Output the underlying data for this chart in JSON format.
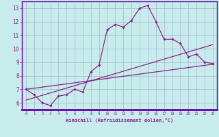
{
  "xlabel": "Windchill (Refroidissement éolien,°C)",
  "bg_color": "#c8ecec",
  "grid_color": "#a0b8cc",
  "line_color": "#882288",
  "axis_bar_color": "#6600aa",
  "xlim": [
    -0.5,
    23.5
  ],
  "ylim": [
    5.5,
    13.5
  ],
  "xticks": [
    0,
    1,
    2,
    3,
    4,
    5,
    6,
    7,
    8,
    9,
    10,
    11,
    12,
    13,
    14,
    15,
    16,
    17,
    18,
    19,
    20,
    21,
    22,
    23
  ],
  "yticks": [
    6,
    7,
    8,
    9,
    10,
    11,
    12,
    13
  ],
  "main_x": [
    0,
    1,
    2,
    3,
    4,
    5,
    6,
    7,
    8,
    9,
    10,
    11,
    12,
    13,
    14,
    15,
    16,
    17,
    18,
    19,
    20,
    21,
    22,
    23
  ],
  "main_y": [
    7.0,
    6.6,
    6.0,
    5.8,
    6.5,
    6.6,
    7.0,
    6.8,
    8.3,
    8.8,
    11.4,
    11.8,
    11.6,
    12.1,
    13.0,
    13.2,
    12.0,
    10.7,
    10.7,
    10.4,
    9.4,
    9.6,
    9.0,
    8.9
  ],
  "trend1_x": [
    0,
    23
  ],
  "trend1_y": [
    7.0,
    8.85
  ],
  "trend2_x": [
    0,
    23
  ],
  "trend2_y": [
    6.2,
    10.3
  ]
}
